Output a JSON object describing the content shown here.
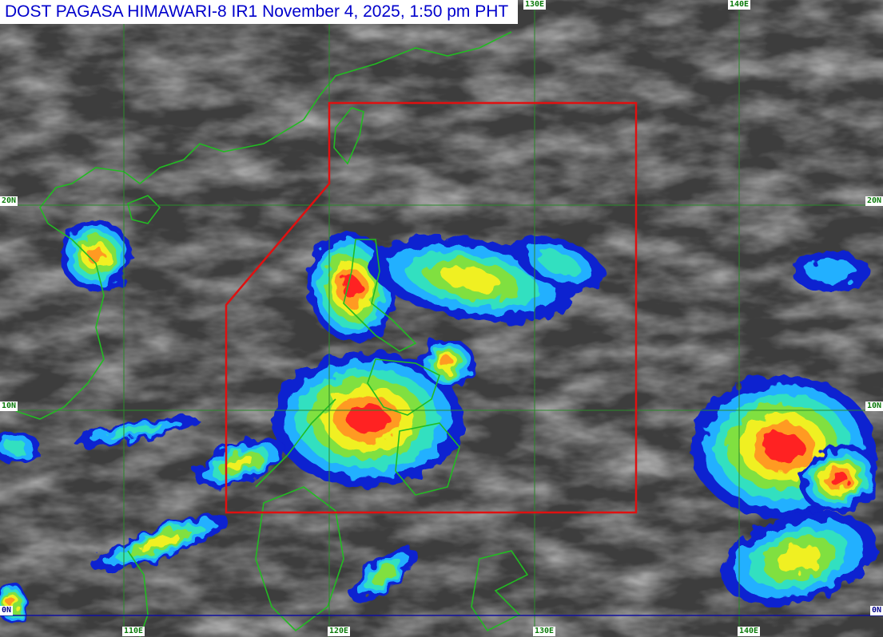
{
  "title": "DOST PAGASA HIMAWARI-8 IR1 November 4, 2025, 1:50 pm PHT",
  "grid": {
    "longitudes": [
      "110E",
      "120E",
      "130E",
      "140E"
    ],
    "top_labels": [
      "130E",
      "140E"
    ],
    "latitudes": [
      "20N",
      "10N",
      "0N"
    ]
  },
  "colors": {
    "title_text": "#0000cc",
    "par_boundary": "#e01010",
    "coastline": "#22bb22",
    "gridline": "#2a8a2a",
    "equator": "#1010a0"
  }
}
